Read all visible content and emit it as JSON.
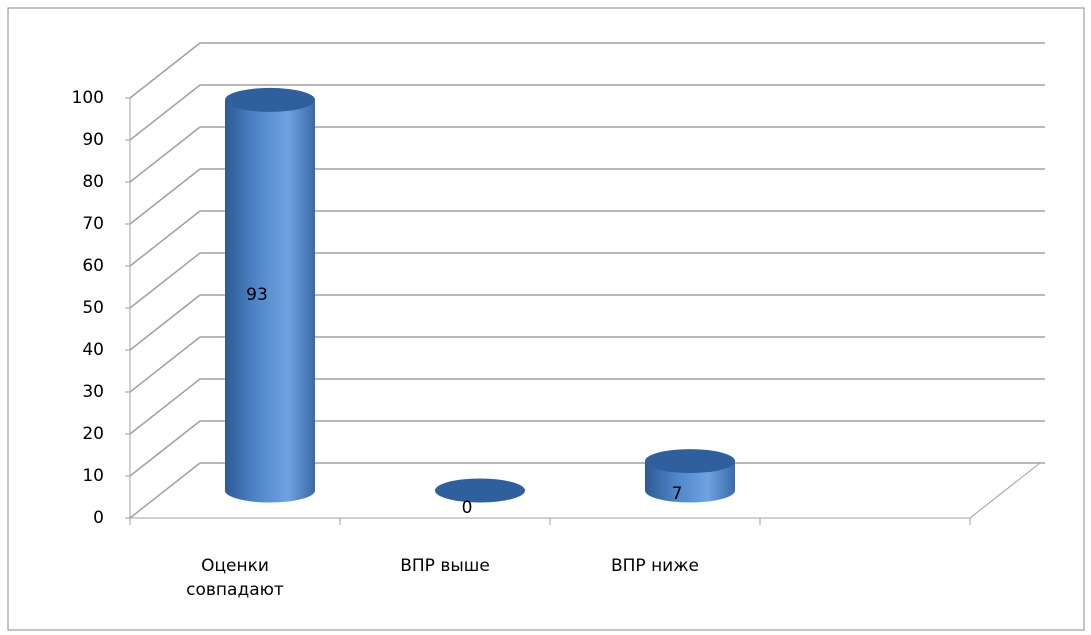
{
  "chart_data": {
    "type": "bar3d",
    "categories": [
      "Оценки совпадают",
      "ВПР выше",
      "ВПР ниже",
      null
    ],
    "values": [
      93,
      0,
      7,
      null
    ],
    "color": "#4a7ebb",
    "ylim": [
      0,
      100
    ],
    "yticks": [
      0,
      10,
      20,
      30,
      40,
      50,
      60,
      70,
      80,
      90,
      100
    ],
    "grid": true
  }
}
